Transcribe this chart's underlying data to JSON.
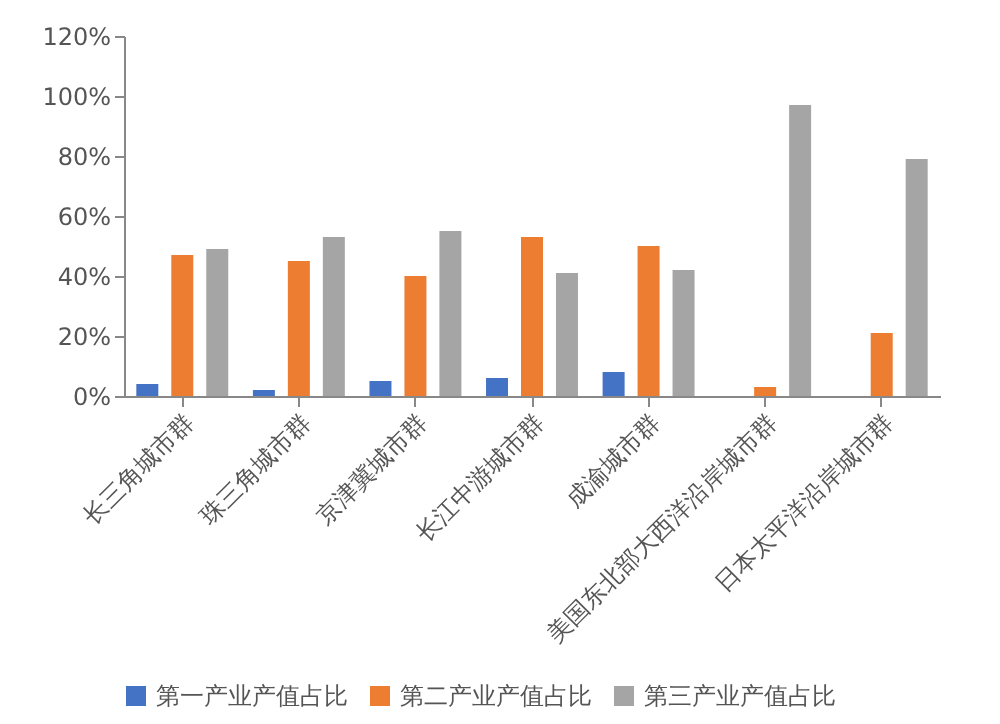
{
  "chart_data": {
    "type": "bar",
    "categories": [
      "长三角城市群",
      "珠三角城市群",
      "京津冀城市群",
      "长江中游城市群",
      "成渝城市群",
      "美国东北部大西洋沿岸城市群",
      "日本太平洋沿岸城市群"
    ],
    "series": [
      {
        "name": "第一产业产值占比",
        "color": "#4472c4",
        "values": [
          4,
          2,
          5,
          6,
          8,
          0,
          0
        ]
      },
      {
        "name": "第二产业产值占比",
        "color": "#ed7d31",
        "values": [
          47,
          45,
          40,
          53,
          50,
          3,
          21
        ]
      },
      {
        "name": "第三产业产值占比",
        "color": "#a5a5a5",
        "values": [
          49,
          53,
          55,
          41,
          42,
          97,
          79
        ]
      }
    ],
    "ylim": [
      0,
      120
    ],
    "yticks": [
      {
        "value": 0,
        "label": "0%"
      },
      {
        "value": 20,
        "label": "20%"
      },
      {
        "value": 40,
        "label": "40%"
      },
      {
        "value": 60,
        "label": "60%"
      },
      {
        "value": 80,
        "label": "80%"
      },
      {
        "value": 100,
        "label": "100%"
      },
      {
        "value": 120,
        "label": "120%"
      }
    ],
    "grid": false,
    "legend": "bottom"
  }
}
